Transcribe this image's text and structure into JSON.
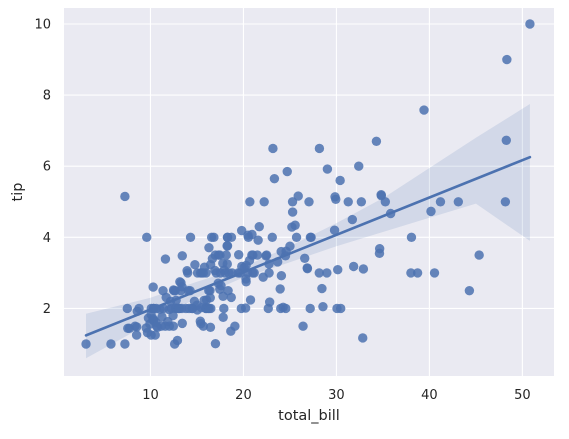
{
  "chart_data": {
    "type": "scatter",
    "title": "",
    "xlabel": "total_bill",
    "ylabel": "tip",
    "xlim": [
      0.7,
      53.4
    ],
    "ylim": [
      0.1,
      10.45
    ],
    "xticks": [
      10,
      20,
      30,
      40,
      50
    ],
    "yticks": [
      2,
      4,
      6,
      8,
      10
    ],
    "grid": true,
    "style": "seaborn darkgrid",
    "colors": {
      "background": "#eaeaf2",
      "grid": "#ffffff",
      "points": "#4c72b0",
      "line": "#4c72b0",
      "confidence_band": "#4c72b0"
    },
    "regression": {
      "slope": 0.105,
      "intercept": 0.92,
      "ci_band": [
        {
          "x": 3.07,
          "lower": 0.6,
          "upper": 1.85
        },
        {
          "x": 10,
          "lower": 1.6,
          "upper": 2.3
        },
        {
          "x": 15,
          "lower": 2.3,
          "upper": 2.75
        },
        {
          "x": 19.8,
          "lower": 2.85,
          "upper": 3.15
        },
        {
          "x": 25,
          "lower": 3.3,
          "upper": 3.75
        },
        {
          "x": 30,
          "lower": 3.75,
          "upper": 4.4
        },
        {
          "x": 35,
          "lower": 4.15,
          "upper": 5.1
        },
        {
          "x": 40,
          "lower": 4.55,
          "upper": 5.95
        },
        {
          "x": 45,
          "lower": 4.95,
          "upper": 6.8
        },
        {
          "x": 50.81,
          "lower": 3.9,
          "upper": 7.75
        }
      ]
    },
    "points": [
      [
        3.07,
        1.0
      ],
      [
        5.75,
        1.0
      ],
      [
        7.25,
        1.0
      ],
      [
        7.25,
        5.15
      ],
      [
        7.51,
        2.0
      ],
      [
        7.56,
        1.44
      ],
      [
        7.74,
        1.44
      ],
      [
        8.35,
        1.5
      ],
      [
        8.51,
        1.25
      ],
      [
        8.52,
        1.48
      ],
      [
        8.58,
        1.92
      ],
      [
        8.77,
        2.0
      ],
      [
        9.55,
        1.45
      ],
      [
        9.6,
        4.0
      ],
      [
        9.68,
        1.32
      ],
      [
        9.78,
        1.73
      ],
      [
        9.94,
        1.56
      ],
      [
        10.07,
        1.25
      ],
      [
        10.07,
        1.83
      ],
      [
        10.09,
        2.0
      ],
      [
        10.27,
        1.71
      ],
      [
        10.29,
        2.6
      ],
      [
        10.33,
        1.67
      ],
      [
        10.33,
        2.0
      ],
      [
        10.34,
        1.66
      ],
      [
        10.34,
        2.0
      ],
      [
        10.51,
        1.25
      ],
      [
        10.59,
        1.61
      ],
      [
        10.63,
        2.0
      ],
      [
        10.65,
        1.5
      ],
      [
        10.77,
        1.47
      ],
      [
        11.02,
        1.98
      ],
      [
        11.17,
        1.5
      ],
      [
        11.24,
        1.76
      ],
      [
        11.35,
        2.5
      ],
      [
        11.38,
        2.0
      ],
      [
        11.59,
        1.5
      ],
      [
        11.61,
        3.39
      ],
      [
        11.69,
        2.31
      ],
      [
        11.87,
        1.63
      ],
      [
        12.02,
        1.97
      ],
      [
        12.03,
        1.5
      ],
      [
        12.16,
        2.2
      ],
      [
        12.26,
        2.0
      ],
      [
        12.43,
        1.8
      ],
      [
        12.46,
        1.5
      ],
      [
        12.48,
        2.52
      ],
      [
        12.54,
        2.5
      ],
      [
        12.6,
        1.0
      ],
      [
        12.66,
        2.5
      ],
      [
        12.69,
        2.0
      ],
      [
        12.74,
        2.01
      ],
      [
        12.76,
        2.23
      ],
      [
        12.9,
        1.1
      ],
      [
        13.0,
        2.0
      ],
      [
        13.03,
        2.0
      ],
      [
        13.13,
        2.0
      ],
      [
        13.16,
        2.75
      ],
      [
        13.27,
        2.5
      ],
      [
        13.28,
        2.72
      ],
      [
        13.37,
        2.0
      ],
      [
        13.39,
        2.61
      ],
      [
        13.42,
        1.58
      ],
      [
        13.42,
        3.48
      ],
      [
        13.81,
        2.0
      ],
      [
        13.94,
        3.06
      ],
      [
        14.0,
        3.0
      ],
      [
        14.07,
        2.5
      ],
      [
        14.15,
        2.0
      ],
      [
        14.26,
        2.5
      ],
      [
        14.31,
        4.0
      ],
      [
        14.48,
        2.0
      ],
      [
        14.52,
        2.0
      ],
      [
        14.73,
        2.2
      ],
      [
        14.78,
        3.23
      ],
      [
        15.01,
        2.09
      ],
      [
        15.04,
        1.96
      ],
      [
        15.06,
        3.0
      ],
      [
        15.36,
        1.64
      ],
      [
        15.38,
        3.0
      ],
      [
        15.42,
        1.57
      ],
      [
        15.48,
        2.02
      ],
      [
        15.53,
        3.0
      ],
      [
        15.69,
        1.5
      ],
      [
        15.69,
        3.0
      ],
      [
        15.77,
        2.23
      ],
      [
        15.81,
        3.16
      ],
      [
        15.95,
        2.0
      ],
      [
        15.98,
        2.03
      ],
      [
        15.98,
        3.0
      ],
      [
        16.0,
        2.0
      ],
      [
        16.04,
        2.24
      ],
      [
        16.21,
        2.0
      ],
      [
        16.27,
        2.5
      ],
      [
        16.29,
        3.71
      ],
      [
        16.31,
        2.0
      ],
      [
        16.4,
        2.5
      ],
      [
        16.43,
        2.3
      ],
      [
        16.45,
        1.47
      ],
      [
        16.47,
        3.23
      ],
      [
        16.49,
        2.0
      ],
      [
        16.58,
        4.0
      ],
      [
        16.66,
        3.4
      ],
      [
        16.82,
        4.0
      ],
      [
        16.93,
        3.07
      ],
      [
        16.97,
        3.5
      ],
      [
        16.99,
        1.01
      ],
      [
        17.07,
        3.0
      ],
      [
        17.29,
        2.71
      ],
      [
        17.31,
        3.5
      ],
      [
        17.46,
        2.54
      ],
      [
        17.47,
        3.5
      ],
      [
        17.51,
        3.0
      ],
      [
        17.59,
        2.64
      ],
      [
        17.78,
        3.27
      ],
      [
        17.81,
        2.34
      ],
      [
        17.82,
        1.75
      ],
      [
        17.89,
        2.0
      ],
      [
        17.92,
        3.08
      ],
      [
        18.04,
        3.0
      ],
      [
        18.15,
        3.5
      ],
      [
        18.24,
        3.76
      ],
      [
        18.26,
        3.25
      ],
      [
        18.28,
        4.0
      ],
      [
        18.29,
        3.76
      ],
      [
        18.29,
        4.0
      ],
      [
        18.35,
        2.5
      ],
      [
        18.43,
        3.0
      ],
      [
        18.64,
        1.36
      ],
      [
        18.69,
        2.31
      ],
      [
        18.71,
        4.0
      ],
      [
        18.78,
        3.0
      ],
      [
        19.08,
        1.5
      ],
      [
        19.44,
        3.0
      ],
      [
        19.49,
        3.51
      ],
      [
        19.65,
        3.0
      ],
      [
        19.77,
        2.0
      ],
      [
        19.81,
        4.19
      ],
      [
        19.82,
        3.18
      ],
      [
        20.08,
        3.15
      ],
      [
        20.23,
        2.01
      ],
      [
        20.27,
        2.83
      ],
      [
        20.29,
        2.75
      ],
      [
        20.29,
        3.21
      ],
      [
        20.45,
        3.0
      ],
      [
        20.49,
        4.06
      ],
      [
        20.53,
        4.0
      ],
      [
        20.65,
        3.35
      ],
      [
        20.69,
        5.0
      ],
      [
        20.76,
        2.24
      ],
      [
        20.9,
        3.5
      ],
      [
        20.92,
        4.08
      ],
      [
        21.01,
        3.5
      ],
      [
        21.01,
        3.0
      ],
      [
        21.16,
        3.0
      ],
      [
        21.5,
        3.5
      ],
      [
        21.58,
        3.92
      ],
      [
        21.7,
        4.3
      ],
      [
        22.12,
        2.88
      ],
      [
        22.23,
        5.0
      ],
      [
        22.42,
        3.48
      ],
      [
        22.49,
        3.5
      ],
      [
        22.67,
        2.0
      ],
      [
        22.75,
        3.25
      ],
      [
        22.76,
        3.0
      ],
      [
        22.82,
        2.18
      ],
      [
        23.1,
        4.0
      ],
      [
        23.17,
        6.5
      ],
      [
        23.33,
        5.65
      ],
      [
        23.68,
        3.31
      ],
      [
        23.95,
        2.55
      ],
      [
        24.01,
        2.0
      ],
      [
        24.06,
        3.6
      ],
      [
        24.08,
        2.92
      ],
      [
        24.27,
        2.03
      ],
      [
        24.52,
        3.48
      ],
      [
        24.55,
        2.0
      ],
      [
        24.59,
        3.61
      ],
      [
        24.71,
        5.85
      ],
      [
        25.0,
        3.75
      ],
      [
        25.21,
        4.29
      ],
      [
        25.28,
        5.0
      ],
      [
        25.29,
        4.71
      ],
      [
        25.56,
        4.34
      ],
      [
        25.71,
        4.0
      ],
      [
        25.89,
        5.16
      ],
      [
        26.41,
        1.5
      ],
      [
        26.59,
        3.41
      ],
      [
        26.86,
        3.14
      ],
      [
        26.88,
        3.12
      ],
      [
        27.05,
        5.0
      ],
      [
        27.18,
        2.0
      ],
      [
        27.2,
        4.0
      ],
      [
        27.28,
        4.0
      ],
      [
        28.15,
        3.0
      ],
      [
        28.17,
        6.5
      ],
      [
        28.44,
        2.56
      ],
      [
        28.55,
        2.05
      ],
      [
        28.97,
        3.0
      ],
      [
        29.03,
        5.92
      ],
      [
        29.8,
        4.2
      ],
      [
        29.85,
        5.14
      ],
      [
        29.93,
        5.07
      ],
      [
        30.06,
        2.0
      ],
      [
        30.14,
        3.09
      ],
      [
        30.4,
        5.6
      ],
      [
        30.46,
        2.0
      ],
      [
        31.27,
        5.0
      ],
      [
        31.71,
        4.5
      ],
      [
        31.85,
        3.18
      ],
      [
        32.4,
        6.0
      ],
      [
        32.68,
        5.0
      ],
      [
        32.83,
        1.17
      ],
      [
        32.9,
        3.11
      ],
      [
        34.3,
        6.7
      ],
      [
        34.63,
        3.55
      ],
      [
        34.65,
        3.68
      ],
      [
        34.81,
        5.2
      ],
      [
        34.83,
        5.17
      ],
      [
        35.26,
        5.0
      ],
      [
        35.83,
        4.67
      ],
      [
        38.01,
        3.0
      ],
      [
        38.07,
        4.0
      ],
      [
        38.73,
        3.0
      ],
      [
        39.42,
        7.58
      ],
      [
        40.17,
        4.73
      ],
      [
        40.55,
        3.0
      ],
      [
        41.19,
        5.0
      ],
      [
        43.11,
        5.0
      ],
      [
        44.3,
        2.5
      ],
      [
        45.35,
        3.5
      ],
      [
        48.17,
        5.0
      ],
      [
        48.27,
        6.73
      ],
      [
        48.33,
        9.0
      ],
      [
        50.81,
        10.0
      ]
    ]
  }
}
